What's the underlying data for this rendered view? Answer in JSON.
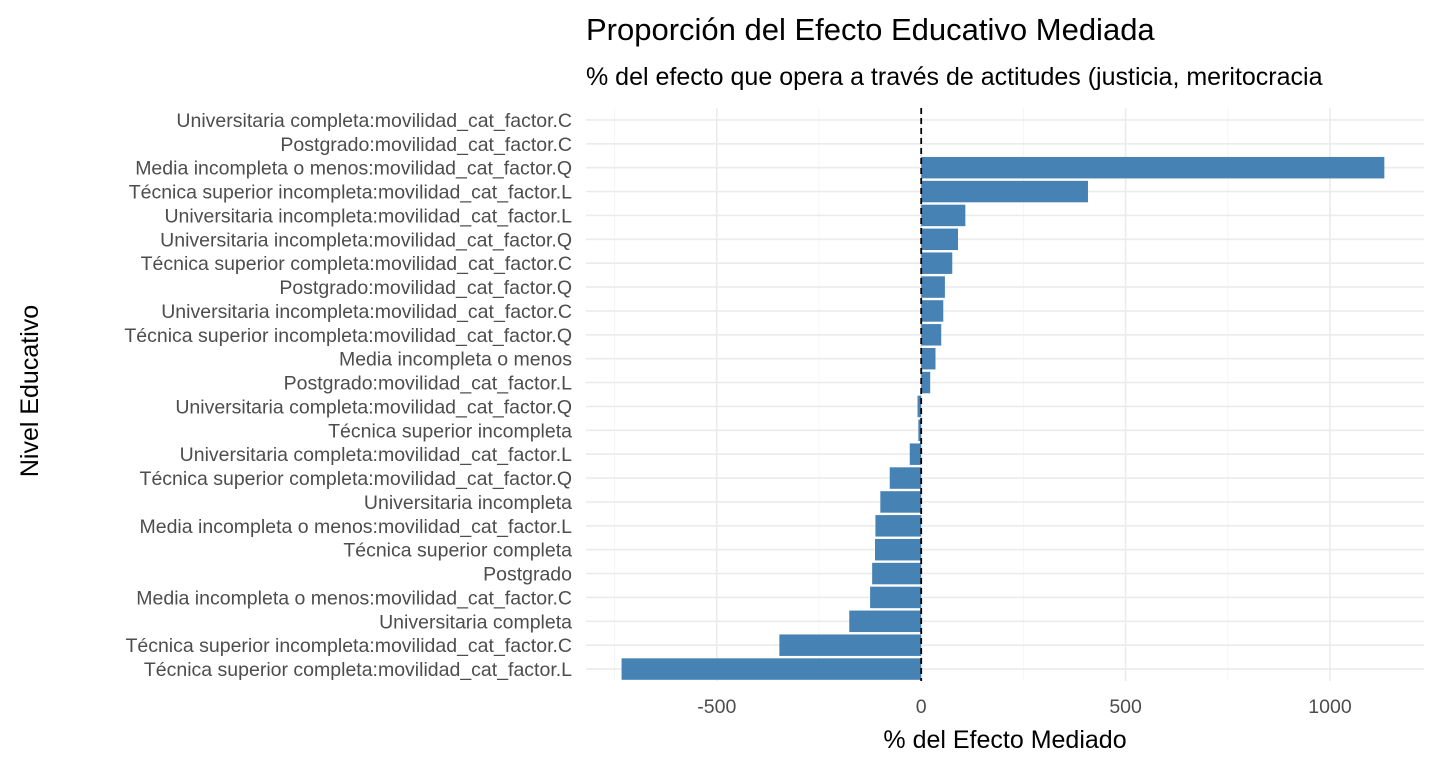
{
  "chart_data": {
    "type": "bar",
    "orientation": "horizontal",
    "title": "Proporción del Efecto Educativo Mediada",
    "subtitle": "% del efecto que opera a través de actitudes (justicia, meritocracia",
    "xlabel": "% del Efecto Mediado",
    "ylabel": "Nivel Educativo",
    "xlim": [
      -820,
      1230
    ],
    "xticks": [
      -500,
      0,
      500,
      1000
    ],
    "xtick_labels": [
      "-500",
      "0",
      "500",
      "1000"
    ],
    "reference_line": {
      "x": 0,
      "style": "dashed"
    },
    "bar_color": "#4682b4",
    "grid": true,
    "categories": [
      "Universitaria completa:movilidad_cat_factor.C",
      "Postgrado:movilidad_cat_factor.C",
      "Media incompleta o menos:movilidad_cat_factor.Q",
      "Técnica superior incompleta:movilidad_cat_factor.L",
      "Universitaria incompleta:movilidad_cat_factor.L",
      "Universitaria incompleta:movilidad_cat_factor.Q",
      "Técnica superior completa:movilidad_cat_factor.C",
      "Postgrado:movilidad_cat_factor.Q",
      "Universitaria incompleta:movilidad_cat_factor.C",
      "Técnica superior incompleta:movilidad_cat_factor.Q",
      "Media incompleta o menos",
      "Postgrado:movilidad_cat_factor.L",
      "Universitaria completa:movilidad_cat_factor.Q",
      "Técnica superior incompleta",
      "Universitaria completa:movilidad_cat_factor.L",
      "Técnica superior completa:movilidad_cat_factor.Q",
      "Universitaria incompleta",
      "Media incompleta o menos:movilidad_cat_factor.L",
      "Técnica superior completa",
      "Postgrado",
      "Media incompleta o menos:movilidad_cat_factor.C",
      "Universitaria completa",
      "Técnica superior incompleta:movilidad_cat_factor.C",
      "Técnica superior completa:movilidad_cat_factor.L"
    ],
    "values": [
      0,
      0,
      1133,
      408,
      108,
      90,
      76,
      58,
      54,
      49,
      35,
      22,
      -9,
      -7,
      -28,
      -77,
      -100,
      -112,
      -113,
      -120,
      -125,
      -176,
      -347,
      -733
    ]
  }
}
